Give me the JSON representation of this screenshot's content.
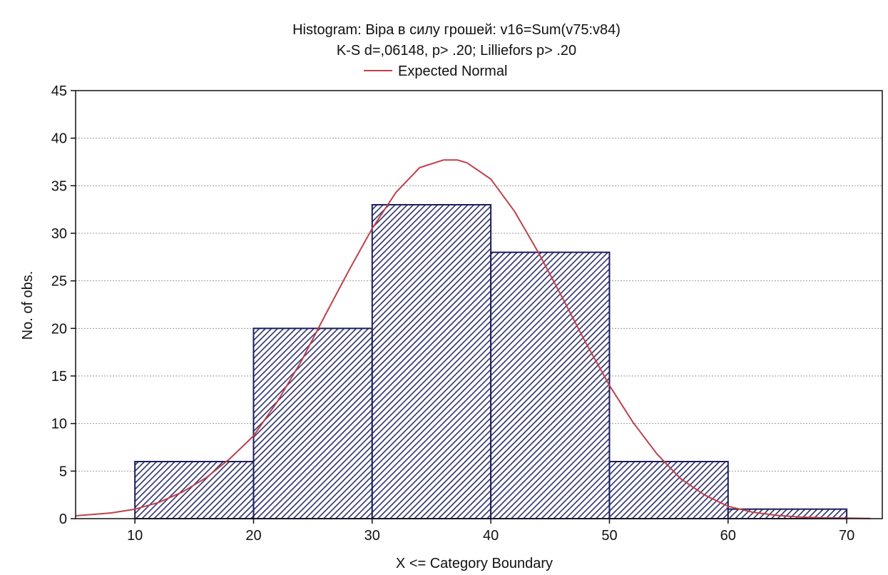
{
  "chart_data": {
    "type": "bar",
    "title": "Histogram: Віра в силу грошей: v16=Sum(v75:v84)",
    "subtitle": "K-S d=,06148, p> .20; Lilliefors p> .20",
    "xlabel": "X <= Category Boundary",
    "ylabel": "No. of obs.",
    "xlim": [
      5,
      73
    ],
    "ylim": [
      0,
      45
    ],
    "x_ticks": [
      10,
      20,
      30,
      40,
      50,
      60,
      70
    ],
    "y_ticks": [
      0,
      5,
      10,
      15,
      20,
      25,
      30,
      35,
      40,
      45
    ],
    "grid": true,
    "bins": [
      {
        "from": 10,
        "to": 20,
        "value": 6
      },
      {
        "from": 20,
        "to": 30,
        "value": 20
      },
      {
        "from": 30,
        "to": 40,
        "value": 33
      },
      {
        "from": 40,
        "to": 50,
        "value": 28
      },
      {
        "from": 50,
        "to": 60,
        "value": 6
      },
      {
        "from": 60,
        "to": 70,
        "value": 1
      }
    ],
    "series": [
      {
        "name": "Expected Normal",
        "type": "line",
        "x": [
          5,
          8,
          10,
          12,
          14,
          16,
          18,
          20,
          22,
          24,
          26,
          28,
          30,
          32,
          34,
          36,
          37.2,
          38,
          40,
          42,
          44,
          46,
          48,
          50,
          52,
          54,
          56,
          58,
          60,
          62,
          64,
          66,
          68,
          70,
          72
        ],
        "y": [
          0.3,
          0.6,
          1.0,
          1.7,
          2.8,
          4.3,
          6.3,
          8.7,
          12.3,
          16.5,
          21.3,
          26.0,
          30.5,
          34.3,
          36.9,
          37.7,
          37.7,
          37.4,
          35.7,
          32.3,
          28.0,
          23.3,
          18.5,
          14.0,
          10.1,
          6.8,
          4.2,
          2.5,
          1.3,
          0.7,
          0.35,
          0.17,
          0.08,
          0.05,
          0.02
        ]
      }
    ],
    "legend": {
      "position": "top-center",
      "label": "Expected Normal"
    },
    "colors": {
      "bar_fill": "#2b2f6b",
      "bar_stroke": "#1c1f5c",
      "curve": "#c0404a",
      "grid": "#9a9a9a",
      "axis": "#111111"
    }
  }
}
